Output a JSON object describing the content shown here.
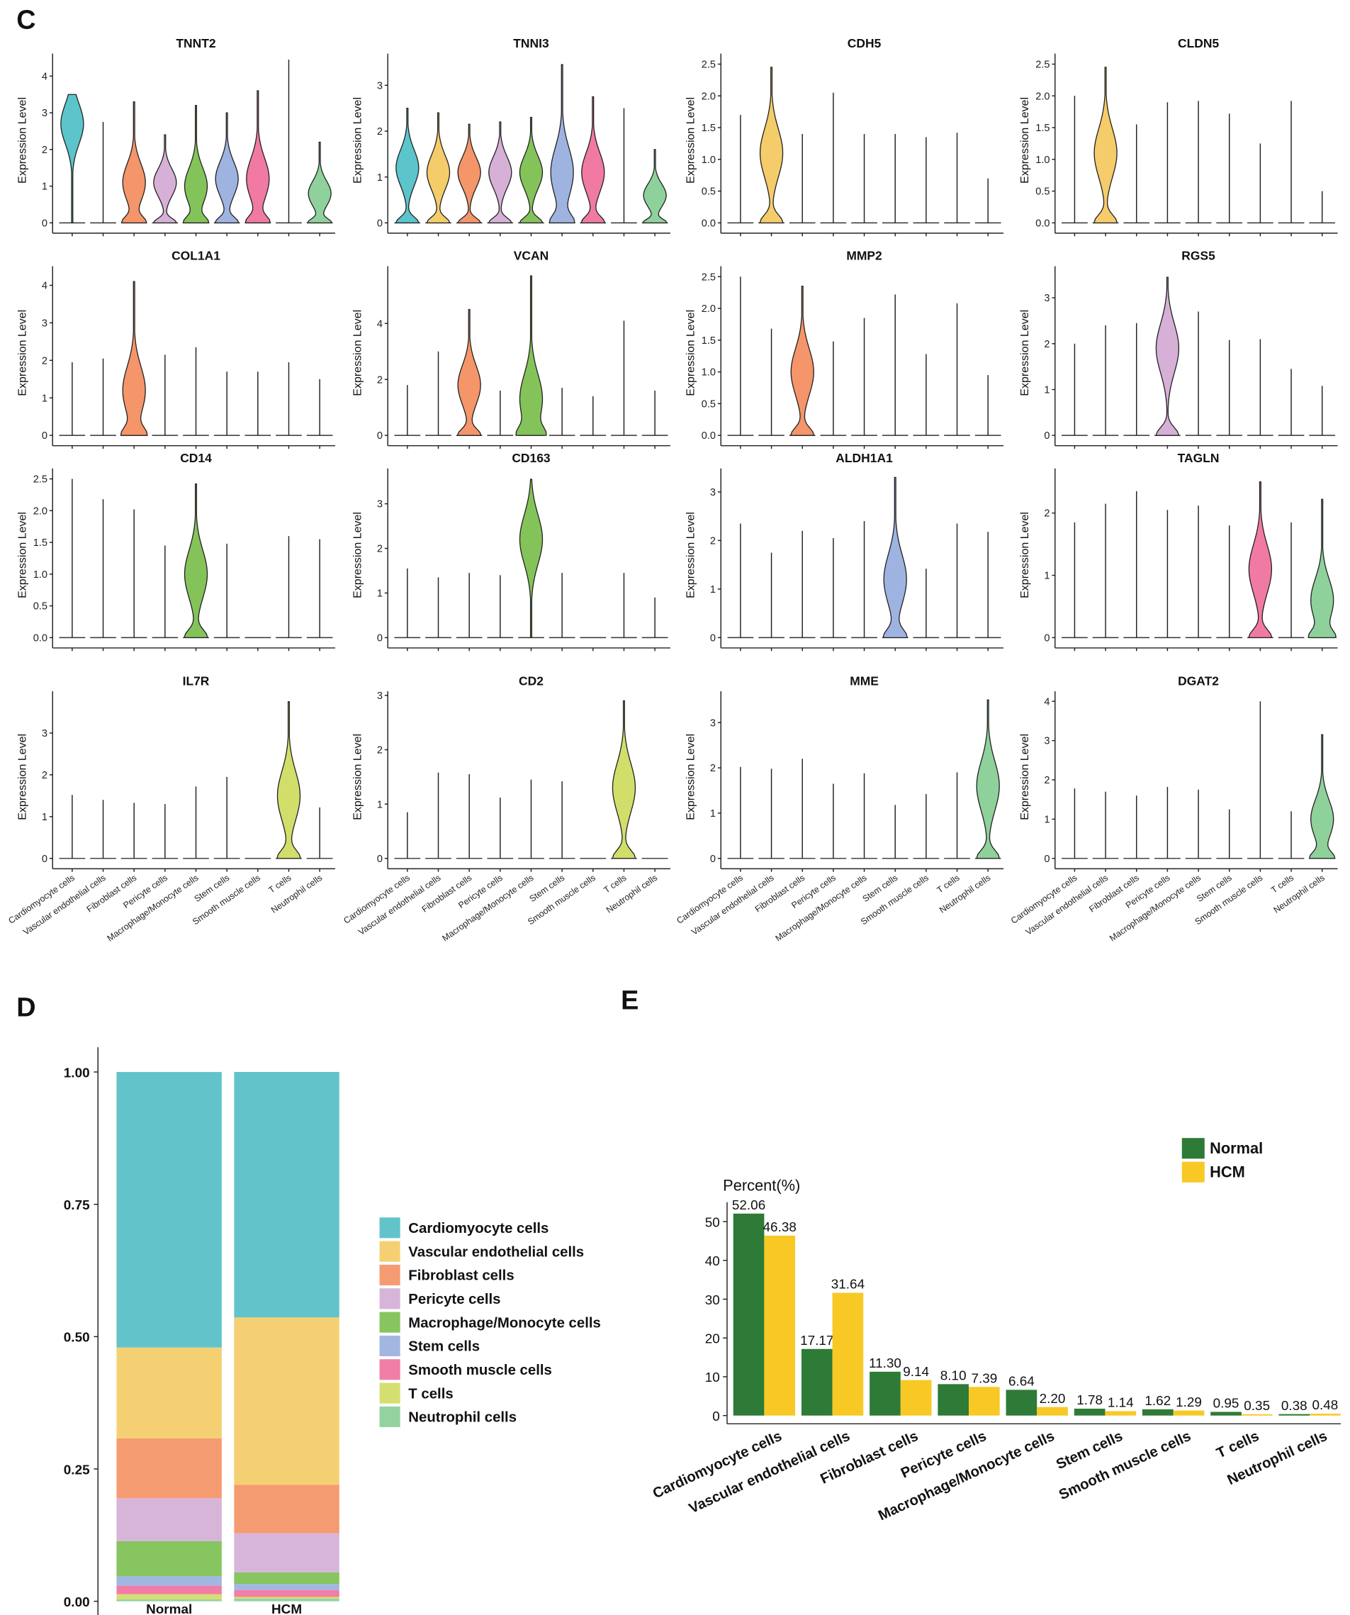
{
  "chart_data": [
    {
      "type": "violin",
      "panel_label": "C",
      "ylabel": "Expression Level",
      "categories": [
        "Cardiomyocyte cells",
        "Vascular endothelial cells",
        "Fibroblast cells",
        "Pericyte cells",
        "Macrophage/Monocyte cells",
        "Stem cells",
        "Smooth muscle cells",
        "T cells",
        "Neutrophil cells"
      ],
      "colors": [
        "#5bc5cb",
        "#f5cc6a",
        "#f4956a",
        "#d6b0d6",
        "#84c35a",
        "#9fb3e0",
        "#f07aa3",
        "#d2de6a",
        "#8fd19b"
      ],
      "panels": [
        {
          "title": "TNNT2",
          "ylim": [
            0,
            4.5
          ],
          "yticks": [
            0,
            1,
            2,
            3,
            4
          ],
          "max": [
            3.5,
            2.75,
            3.3,
            2.4,
            3.2,
            3.0,
            3.6,
            4.45,
            2.2
          ],
          "mode": [
            2.7,
            null,
            1.1,
            1.1,
            1.0,
            1.2,
            1.2,
            null,
            0.8
          ]
        },
        {
          "title": "TNNI3",
          "ylim": [
            0,
            3.6
          ],
          "yticks": [
            0,
            1,
            2,
            3
          ],
          "max": [
            2.5,
            2.4,
            2.15,
            2.2,
            2.3,
            3.45,
            2.75,
            2.5,
            1.6
          ],
          "mode": [
            1.2,
            1.1,
            1.1,
            1.1,
            1.1,
            1.1,
            1.1,
            null,
            0.6
          ]
        },
        {
          "title": "CDH5",
          "ylim": [
            0,
            2.6
          ],
          "yticks": [
            {
              "value": 0,
              "label": "0.0"
            },
            0.5,
            {
              "value": 1,
              "label": "1.0"
            },
            1.5,
            {
              "value": 2,
              "label": "2.0"
            },
            2.5
          ],
          "max": [
            1.7,
            2.45,
            1.4,
            2.05,
            1.4,
            1.4,
            1.35,
            1.42,
            0.7
          ],
          "mode": [
            null,
            1.1,
            null,
            null,
            null,
            null,
            null,
            null,
            null
          ]
        },
        {
          "title": "CLDN5",
          "ylim": [
            0,
            2.6
          ],
          "yticks": [
            {
              "value": 0,
              "label": "0.0"
            },
            0.5,
            {
              "value": 1,
              "label": "1.0"
            },
            1.5,
            {
              "value": 2,
              "label": "2.0"
            },
            2.5
          ],
          "max": [
            2.0,
            2.45,
            1.55,
            1.9,
            1.92,
            1.72,
            1.25,
            1.92,
            0.5
          ],
          "mode": [
            null,
            1.1,
            null,
            null,
            null,
            null,
            null,
            null,
            null
          ]
        },
        {
          "title": "COL1A1",
          "ylim": [
            0,
            4.4
          ],
          "yticks": [
            0,
            1,
            2,
            3,
            4
          ],
          "max": [
            1.95,
            2.05,
            4.1,
            2.15,
            2.35,
            1.7,
            1.7,
            1.95,
            1.5
          ],
          "mode": [
            null,
            null,
            1.2,
            null,
            null,
            null,
            null,
            null,
            null
          ]
        },
        {
          "title": "VCAN",
          "ylim": [
            0,
            5.9
          ],
          "yticks": [
            0,
            2,
            4
          ],
          "max": [
            1.8,
            3.0,
            4.5,
            1.6,
            5.7,
            1.7,
            1.4,
            4.1,
            1.6
          ],
          "mode": [
            null,
            null,
            1.8,
            null,
            1.3,
            null,
            null,
            null,
            null
          ]
        },
        {
          "title": "MMP2",
          "ylim": [
            0,
            2.6
          ],
          "yticks": [
            {
              "value": 0,
              "label": "0.0"
            },
            0.5,
            {
              "value": 1,
              "label": "1.0"
            },
            1.5,
            {
              "value": 2,
              "label": "2.0"
            },
            2.5
          ],
          "max": [
            2.5,
            1.68,
            2.35,
            1.48,
            1.85,
            2.22,
            1.28,
            2.08,
            0.95
          ],
          "mode": [
            null,
            null,
            1.0,
            null,
            null,
            null,
            null,
            null,
            null
          ]
        },
        {
          "title": "RGS5",
          "ylim": [
            0,
            3.6
          ],
          "yticks": [
            0,
            1,
            2,
            3
          ],
          "max": [
            2.0,
            2.4,
            2.45,
            3.45,
            2.7,
            2.08,
            2.1,
            1.45,
            1.08
          ],
          "mode": [
            null,
            null,
            null,
            1.9,
            null,
            null,
            null,
            null,
            null
          ]
        },
        {
          "title": "CD14",
          "ylim": [
            0,
            2.6
          ],
          "yticks": [
            {
              "value": 0,
              "label": "0.0"
            },
            0.5,
            {
              "value": 1,
              "label": "1.0"
            },
            1.5,
            {
              "value": 2,
              "label": "2.0"
            },
            2.5
          ],
          "max": [
            2.5,
            2.18,
            2.02,
            1.45,
            2.42,
            1.48,
            0,
            1.6,
            1.55
          ],
          "mode": [
            null,
            null,
            null,
            null,
            1.0,
            null,
            null,
            null,
            null
          ]
        },
        {
          "title": "CD163",
          "ylim": [
            0,
            3.7
          ],
          "yticks": [
            0,
            1,
            2,
            3
          ],
          "max": [
            1.55,
            1.35,
            1.45,
            1.4,
            3.55,
            1.45,
            0,
            1.45,
            0.9
          ],
          "mode": [
            null,
            null,
            null,
            null,
            2.2,
            null,
            null,
            null,
            null
          ]
        },
        {
          "title": "ALDH1A1",
          "ylim": [
            0,
            3.4
          ],
          "yticks": [
            0,
            1,
            2,
            3
          ],
          "max": [
            2.35,
            1.75,
            2.2,
            2.05,
            2.4,
            3.3,
            1.42,
            2.35,
            2.18
          ],
          "mode": [
            null,
            null,
            null,
            null,
            null,
            1.2,
            null,
            null,
            null
          ]
        },
        {
          "title": "TAGLN",
          "ylim": [
            0,
            2.65
          ],
          "yticks": [
            0,
            1,
            2
          ],
          "max": [
            1.85,
            2.15,
            2.35,
            2.05,
            2.12,
            1.8,
            2.5,
            1.85,
            2.22
          ],
          "mode": [
            null,
            null,
            null,
            null,
            null,
            null,
            1.1,
            null,
            0.6
          ]
        },
        {
          "title": "IL7R",
          "ylim": [
            0,
            3.9
          ],
          "yticks": [
            0,
            1,
            2,
            3
          ],
          "max": [
            1.52,
            1.4,
            1.33,
            1.3,
            1.72,
            1.95,
            0,
            3.75,
            1.22
          ],
          "mode": [
            null,
            null,
            null,
            null,
            null,
            null,
            null,
            1.5,
            null
          ]
        },
        {
          "title": "CD2",
          "ylim": [
            0,
            3.0
          ],
          "yticks": [
            0,
            1,
            2,
            3
          ],
          "max": [
            0.85,
            1.58,
            1.55,
            1.12,
            1.45,
            1.42,
            0,
            2.9,
            0
          ],
          "mode": [
            null,
            null,
            null,
            null,
            null,
            null,
            null,
            1.3,
            null
          ]
        },
        {
          "title": "MME",
          "ylim": [
            0,
            3.6
          ],
          "yticks": [
            0,
            1,
            2,
            3
          ],
          "max": [
            2.02,
            1.98,
            2.2,
            1.65,
            1.88,
            1.18,
            1.42,
            1.9,
            3.5
          ],
          "mode": [
            null,
            null,
            null,
            null,
            null,
            null,
            null,
            null,
            1.6
          ]
        },
        {
          "title": "DGAT2",
          "ylim": [
            0,
            4.15
          ],
          "yticks": [
            0,
            1,
            2,
            3,
            4
          ],
          "max": [
            1.78,
            1.7,
            1.6,
            1.82,
            1.75,
            1.25,
            4.0,
            1.2,
            3.15
          ],
          "mode": [
            null,
            null,
            null,
            null,
            null,
            null,
            null,
            null,
            1.0
          ]
        }
      ]
    },
    {
      "type": "stacked_bar",
      "panel_label": "D",
      "categories": [
        "Normal",
        "HCM"
      ],
      "ylim": [
        0,
        1
      ],
      "yticks": [
        {
          "value": 0,
          "label": "0.00"
        },
        0.25,
        {
          "value": 0.5,
          "label": "0.50"
        },
        0.75,
        {
          "value": 1,
          "label": "1.00"
        }
      ],
      "series": [
        {
          "name": "Cardiomyocyte cells",
          "color": "#62c4ca",
          "values": [
            0.5206,
            0.4638
          ]
        },
        {
          "name": "Vascular endothelial cells",
          "color": "#f5d072",
          "values": [
            0.1717,
            0.3164
          ]
        },
        {
          "name": "Fibroblast cells",
          "color": "#f59b72",
          "values": [
            0.113,
            0.0914
          ]
        },
        {
          "name": "Pericyte cells",
          "color": "#d7b5d8",
          "values": [
            0.081,
            0.0739
          ]
        },
        {
          "name": "Macrophage/Monocyte cells",
          "color": "#86c560",
          "values": [
            0.0664,
            0.022
          ]
        },
        {
          "name": "Stem cells",
          "color": "#a2b6e2",
          "values": [
            0.0178,
            0.0114
          ]
        },
        {
          "name": "Smooth muscle cells",
          "color": "#f07ea6",
          "values": [
            0.0162,
            0.0129
          ]
        },
        {
          "name": "T cells",
          "color": "#d4df70",
          "values": [
            0.0095,
            0.0035
          ]
        },
        {
          "name": "Neutrophil cells",
          "color": "#93d3a0",
          "values": [
            0.0038,
            0.0048
          ]
        }
      ]
    },
    {
      "type": "grouped_bar",
      "panel_label": "E",
      "ylabel": "Percent(%)",
      "categories": [
        "Cardiomyocyte cells",
        "Vascular endothelial cells",
        "Fibroblast cells",
        "Pericyte cells",
        "Macrophage/Monocyte cells",
        "Stem cells",
        "Smooth muscle cells",
        "T cells",
        "Neutrophil cells"
      ],
      "ylim": [
        0,
        55
      ],
      "yticks": [
        0,
        10,
        20,
        30,
        40,
        50
      ],
      "series": [
        {
          "name": "Normal",
          "color": "#2e7b37",
          "values": [
            52.06,
            17.17,
            11.3,
            8.1,
            6.64,
            1.78,
            1.62,
            0.95,
            0.38
          ],
          "value_labels": [
            "52.06",
            "17.17",
            "11.30",
            "8.10",
            "6.64",
            "1.78",
            "1.62",
            "0.95",
            "0.38"
          ]
        },
        {
          "name": "HCM",
          "color": "#f8c925",
          "values": [
            46.38,
            31.64,
            9.14,
            7.39,
            2.2,
            1.14,
            1.29,
            0.35,
            0.48
          ],
          "value_labels": [
            "46.38",
            "31.64",
            "9.14",
            "7.39",
            "2.20",
            "1.14",
            "1.29",
            "0.35",
            "0.48"
          ]
        }
      ]
    }
  ]
}
